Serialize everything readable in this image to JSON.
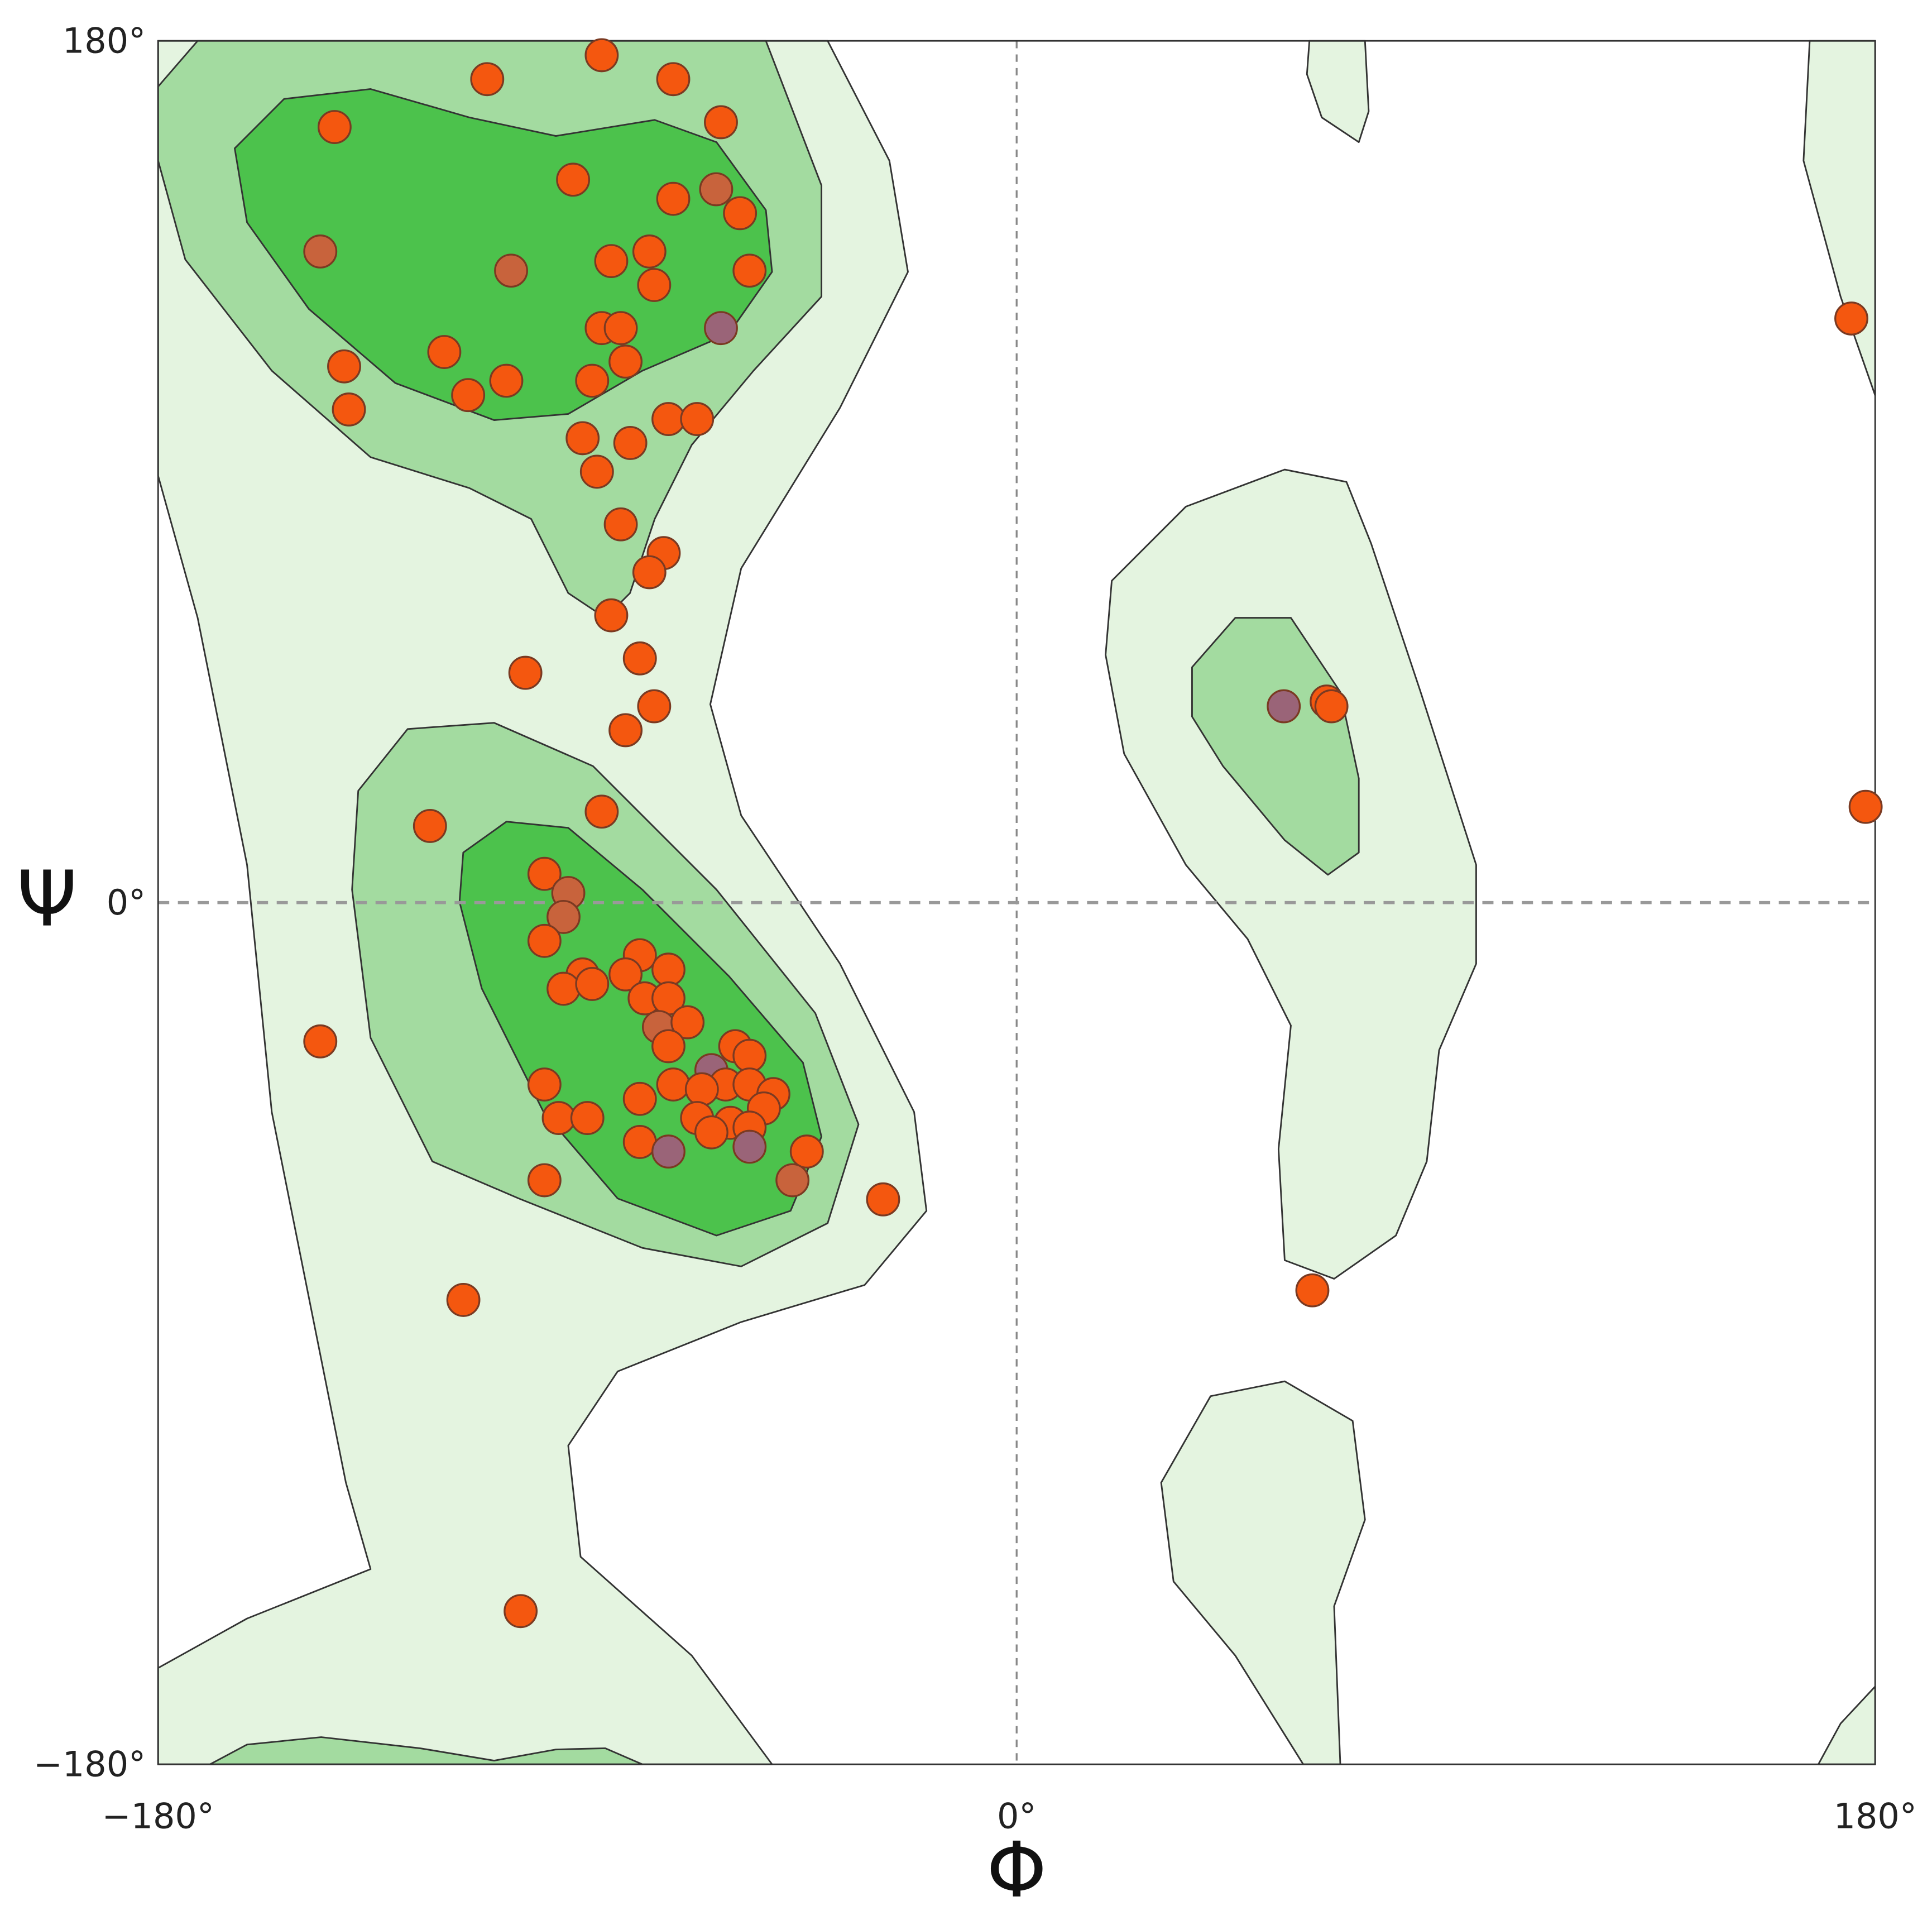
{
  "chart_data": {
    "type": "scatter",
    "x_label": "Φ",
    "y_label": "Ψ",
    "xlim": [
      -180,
      180
    ],
    "ylim": [
      -180,
      180
    ],
    "xticks": [
      {
        "value": -180,
        "label": "−180°"
      },
      {
        "value": 0,
        "label": "0°"
      },
      {
        "value": 180,
        "label": "180°"
      }
    ],
    "yticks": [
      {
        "value": -180,
        "label": "−180°"
      },
      {
        "value": 0,
        "label": "0°"
      },
      {
        "value": 180,
        "label": "180°"
      }
    ],
    "zero_lines": true,
    "edge_color": "#7a3a22",
    "x": [
      -87,
      -111,
      -72,
      -143,
      -62,
      -93,
      -63,
      -72,
      -58,
      -146,
      -106,
      -85,
      -77,
      -56,
      -76,
      -62,
      -87,
      -83,
      -141,
      -120,
      -82,
      -107,
      -89,
      -140,
      -115,
      -73,
      -67,
      -91,
      -81,
      -88,
      -83,
      -74,
      -77,
      -85,
      -103,
      -79,
      -76,
      -82,
      -123,
      -87,
      -99,
      -94,
      -95,
      -99,
      -91,
      -95,
      -89,
      -79,
      -82,
      -73,
      -78,
      -73,
      -75,
      -69,
      -73,
      -146,
      -59,
      -56,
      -64,
      -99,
      -61,
      -56,
      -72,
      -79,
      -66,
      -51,
      -67,
      -53,
      -96,
      -90,
      -60,
      -64,
      -56,
      -79,
      -73,
      -56,
      -44,
      -47,
      -99,
      -28,
      -116,
      -104,
      56,
      65,
      66,
      62,
      175,
      178
    ],
    "values": [
      177,
      172,
      172,
      162,
      163,
      151,
      149,
      147,
      144,
      136,
      132,
      134,
      136,
      132,
      129,
      120,
      120,
      120,
      112,
      115,
      113,
      109,
      109,
      103,
      106,
      101,
      101,
      97,
      96,
      90,
      79,
      73,
      69,
      60,
      48,
      51,
      41,
      36,
      16,
      19,
      6,
      2,
      -3,
      -8,
      -15,
      -18,
      -17,
      -11,
      -15,
      -14,
      -20,
      -20,
      -26,
      -25,
      -30,
      -29,
      -30,
      -32,
      -35,
      -38,
      -38,
      -38,
      -38,
      -41,
      -39,
      -40,
      -45,
      -43,
      -45,
      -45,
      -46,
      -48,
      -47,
      -50,
      -52,
      -51,
      -52,
      -58,
      -58,
      -62,
      -83,
      -148,
      41,
      42,
      41,
      -81,
      122,
      20
    ],
    "colors": [
      "#f4570f",
      "#f4570f",
      "#f4570f",
      "#f4570f",
      "#f4570f",
      "#f4570f",
      "#c8633c",
      "#f4570f",
      "#f4570f",
      "#c8633c",
      "#c8633c",
      "#f4570f",
      "#f4570f",
      "#f4570f",
      "#f4570f",
      "#9a6478",
      "#f4570f",
      "#f4570f",
      "#f4570f",
      "#f4570f",
      "#f4570f",
      "#f4570f",
      "#f4570f",
      "#f4570f",
      "#f4570f",
      "#f4570f",
      "#f4570f",
      "#f4570f",
      "#f4570f",
      "#f4570f",
      "#f4570f",
      "#f4570f",
      "#f4570f",
      "#f4570f",
      "#f4570f",
      "#f4570f",
      "#f4570f",
      "#f4570f",
      "#f4570f",
      "#f4570f",
      "#f4570f",
      "#c8633c",
      "#c8633c",
      "#f4570f",
      "#f4570f",
      "#f4570f",
      "#f4570f",
      "#f4570f",
      "#f4570f",
      "#f4570f",
      "#f4570f",
      "#f4570f",
      "#c8633c",
      "#f4570f",
      "#f4570f",
      "#f4570f",
      "#f4570f",
      "#f4570f",
      "#9a6478",
      "#f4570f",
      "#f4570f",
      "#f4570f",
      "#f4570f",
      "#f4570f",
      "#f4570f",
      "#f4570f",
      "#f4570f",
      "#f4570f",
      "#f4570f",
      "#f4570f",
      "#f4570f",
      "#f4570f",
      "#f4570f",
      "#f4570f",
      "#9a6478",
      "#9a6478",
      "#f4570f",
      "#c8633c",
      "#f4570f",
      "#f4570f",
      "#f4570f",
      "#f4570f",
      "#9a6478",
      "#f4570f",
      "#f4570f",
      "#f4570f",
      "#f4570f",
      "#f4570f"
    ]
  }
}
